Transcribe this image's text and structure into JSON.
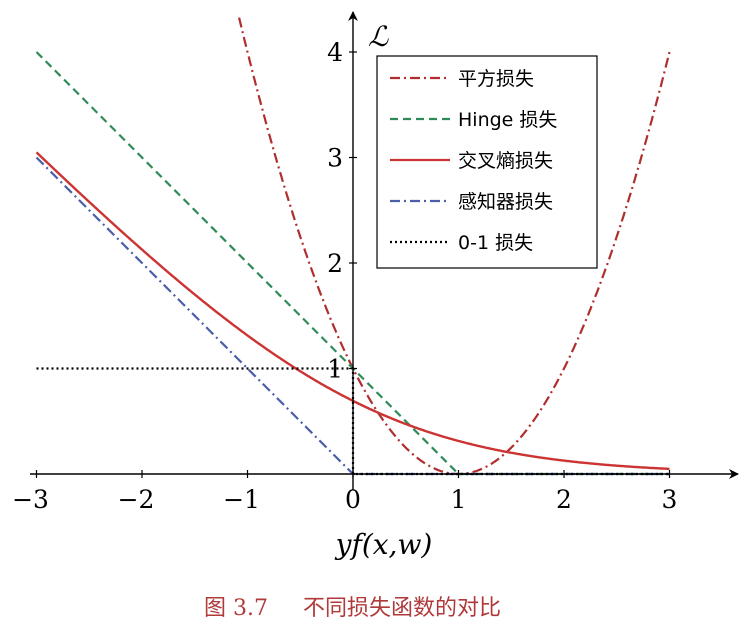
{
  "chart_data": {
    "type": "line",
    "title": "",
    "xlabel": "yf(x,w)",
    "ylabel": "ℒ",
    "xlim": [
      -3,
      3.55
    ],
    "ylim": [
      0,
      4.3
    ],
    "xticks": [
      "−3",
      "−2",
      "−1",
      "0",
      "1",
      "2",
      "3"
    ],
    "yticks": [
      "1",
      "2",
      "3",
      "4"
    ],
    "legend_position": "top-right",
    "series": [
      {
        "name": "平方损失",
        "key": "square",
        "color": "#b02e2e",
        "dash": "dashdot"
      },
      {
        "name": "Hinge 损失",
        "key": "hinge",
        "color": "#2e8b57",
        "dash": "dashed"
      },
      {
        "name": "交叉熵损失",
        "key": "crossentropy",
        "color": "#cc3333",
        "dash": "solid"
      },
      {
        "name": "感知器损失",
        "key": "perceptron",
        "color": "#4a5fa8",
        "dash": "dashdot"
      },
      {
        "name": "0-1 损失",
        "key": "zeroone",
        "color": "#000000",
        "dash": "dotted"
      }
    ],
    "sample_points": {
      "square": {
        "x": [
          -1.05,
          0,
          1,
          2,
          3
        ],
        "y": [
          4.2,
          1,
          0,
          1,
          4
        ]
      },
      "hinge": {
        "x": [
          -3,
          0,
          1,
          3
        ],
        "y": [
          4,
          1,
          0,
          0
        ]
      },
      "crossentropy": {
        "x": [
          -3,
          0,
          3
        ],
        "y": [
          3.05,
          0.69,
          0.05
        ]
      },
      "perceptron": {
        "x": [
          -3,
          0,
          3
        ],
        "y": [
          3,
          0,
          0
        ]
      },
      "zeroone": {
        "x": [
          -3,
          0,
          0,
          3
        ],
        "y": [
          1,
          1,
          0,
          0
        ]
      }
    }
  },
  "caption": {
    "label": "图 3.7",
    "text": "不同损失函数的对比"
  }
}
